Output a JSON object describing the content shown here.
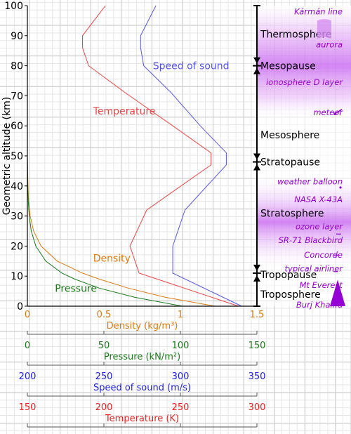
{
  "chart_data": {
    "type": "line",
    "ylabel": "Geometric altitude (km)",
    "ylim": [
      0,
      100
    ],
    "yticks": [
      0,
      10,
      20,
      30,
      40,
      50,
      60,
      70,
      80,
      90,
      100
    ],
    "axes": [
      {
        "key": "density",
        "label": "Density (kg/m³)",
        "color": "#e07a10",
        "min": 0,
        "max": 1.5,
        "ticks": [
          0,
          0.5,
          1,
          1.5
        ],
        "tick_labels": [
          "0",
          "0.5",
          "1",
          "1.5"
        ]
      },
      {
        "key": "pressure",
        "label": "Pressure (kN/m²)",
        "color": "#1a7a1a",
        "min": 0,
        "max": 150,
        "ticks": [
          0,
          50,
          100,
          150
        ],
        "tick_labels": [
          "0",
          "50",
          "100",
          "150"
        ]
      },
      {
        "key": "sound",
        "label": "Speed of sound (m/s)",
        "color": "#2020ee",
        "min": 200,
        "max": 350,
        "ticks": [
          200,
          250,
          300,
          350
        ],
        "tick_labels": [
          "200",
          "250",
          "300",
          "350"
        ]
      },
      {
        "key": "temperature",
        "label": "Temperature (K)",
        "color": "#ee1f1f",
        "min": 150,
        "max": 300,
        "ticks": [
          150,
          200,
          250,
          300
        ],
        "tick_labels": [
          "150",
          "200",
          "250",
          "300"
        ]
      }
    ],
    "series": [
      {
        "name": "Temperature",
        "axis": "temperature",
        "color": "#ee4444",
        "label_at": [
          193,
          65
        ],
        "points": [
          [
            288,
            0
          ],
          [
            223,
            11
          ],
          [
            217,
            20
          ],
          [
            228,
            32
          ],
          [
            270,
            47
          ],
          [
            270,
            51
          ],
          [
            245,
            60
          ],
          [
            214,
            71
          ],
          [
            190,
            80
          ],
          [
            186,
            86
          ],
          [
            186,
            90
          ],
          [
            201,
            100
          ]
        ]
      },
      {
        "name": "Speed of sound",
        "axis": "sound",
        "color": "#5555ee",
        "label_at": [
          282,
          80
        ],
        "points": [
          [
            340,
            0
          ],
          [
            295,
            11
          ],
          [
            295,
            20
          ],
          [
            303,
            32
          ],
          [
            330,
            47
          ],
          [
            330,
            51
          ],
          [
            313,
            60
          ],
          [
            294,
            71
          ],
          [
            276,
            80
          ],
          [
            274,
            86
          ],
          [
            274,
            90
          ],
          [
            284,
            100
          ]
        ]
      },
      {
        "name": "Density",
        "axis": "density",
        "color": "#e07a10",
        "label_at": [
          0.43,
          16
        ],
        "points": [
          [
            1.225,
            0
          ],
          [
            0.9,
            3
          ],
          [
            0.66,
            6
          ],
          [
            0.47,
            9
          ],
          [
            0.36,
            11
          ],
          [
            0.195,
            15
          ],
          [
            0.089,
            20
          ],
          [
            0.041,
            25
          ],
          [
            0.018,
            30
          ],
          [
            0.008,
            35
          ],
          [
            0.004,
            40
          ],
          [
            0.0,
            50
          ]
        ]
      },
      {
        "name": "Pressure",
        "axis": "pressure",
        "color": "#1a7a1a",
        "label_at": [
          18,
          6
        ],
        "points": [
          [
            101.3,
            0
          ],
          [
            70,
            3
          ],
          [
            47,
            6
          ],
          [
            31,
            9
          ],
          [
            22.6,
            11
          ],
          [
            12,
            15
          ],
          [
            5.5,
            20
          ],
          [
            2.5,
            25
          ],
          [
            1.2,
            30
          ],
          [
            0.6,
            35
          ],
          [
            0.29,
            40
          ],
          [
            0.0,
            50
          ]
        ]
      }
    ],
    "layers": [
      {
        "name": "Thermosphere",
        "at": 90.5
      },
      {
        "name": "Mesopause",
        "at": 80
      },
      {
        "name": "Mesosphere",
        "at": 57
      },
      {
        "name": "Stratopause",
        "at": 48
      },
      {
        "name": "Stratosphere",
        "at": 31
      },
      {
        "name": "Tropopause",
        "at": 10.5
      },
      {
        "name": "Troposphere",
        "at": 4
      }
    ],
    "boundaries": [
      80,
      48,
      11
    ],
    "objects": [
      {
        "name": "Kármán line",
        "at": 98
      },
      {
        "name": "aurora",
        "at": 87
      },
      {
        "name": "ionosphere D layer",
        "at": 74.5
      },
      {
        "name": "meteor",
        "at": 64.5
      },
      {
        "name": "weather balloon",
        "at": 41.5
      },
      {
        "name": "NASA X-43A",
        "at": 35.5
      },
      {
        "name": "ozone layer",
        "at": 26.5
      },
      {
        "name": "SR-71 Blackbird",
        "at": 22
      },
      {
        "name": "Concorde",
        "at": 17
      },
      {
        "name": "typical airliner",
        "at": 12.5
      },
      {
        "name": "Mt Everest",
        "at": 7
      },
      {
        "name": "Burj Khalifa",
        "at": 0.5
      }
    ],
    "colors": {
      "purple": "#9400d3",
      "band": "#cc66ee"
    }
  }
}
